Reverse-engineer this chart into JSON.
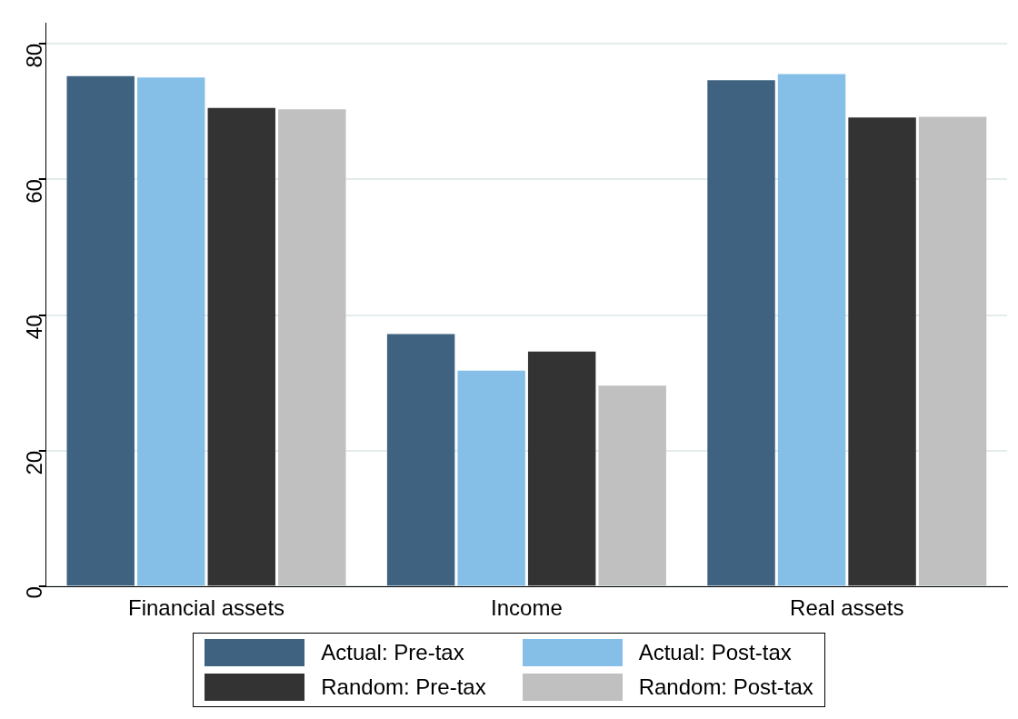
{
  "chart_data": {
    "type": "bar",
    "categories": [
      "Financial assets",
      "Income",
      "Real assets"
    ],
    "series": [
      {
        "name": "Actual: Pre-tax",
        "color": "#3e6280",
        "values": [
          75.2,
          37.2,
          74.6
        ]
      },
      {
        "name": "Actual: Post-tax",
        "color": "#85bfe8",
        "values": [
          75.0,
          31.8,
          75.5
        ]
      },
      {
        "name": "Random: Pre-tax",
        "color": "#333333",
        "values": [
          70.5,
          34.6,
          69.1
        ]
      },
      {
        "name": "Random: Post-tax",
        "color": "#c0c0c0",
        "values": [
          70.3,
          29.6,
          69.2
        ]
      }
    ],
    "ylim": [
      0,
      83
    ],
    "yticks": [
      0,
      20,
      40,
      60,
      80
    ],
    "grid": "y",
    "legend": "bottom"
  }
}
